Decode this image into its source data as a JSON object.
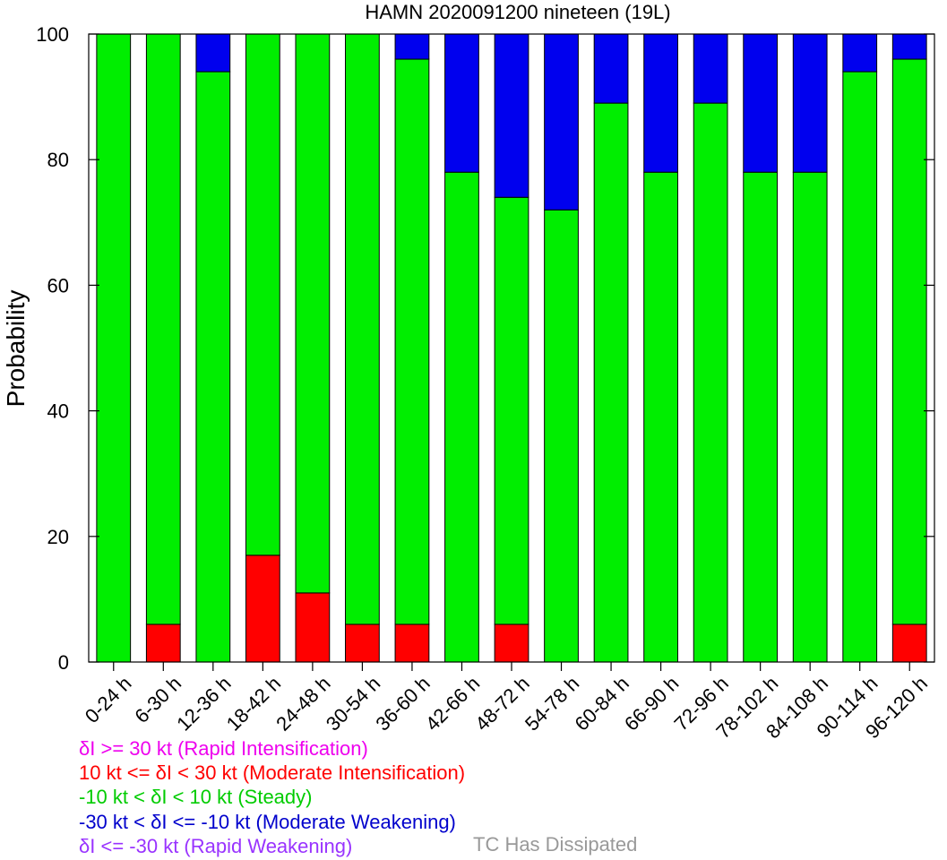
{
  "chart_data": {
    "type": "bar",
    "stacked": true,
    "title": "HAMN 2020091200 nineteen (19L)",
    "xlabel": "",
    "ylabel": "Probability",
    "ylim": [
      0,
      100
    ],
    "yticks": [
      "0",
      "20",
      "40",
      "60",
      "80",
      "100"
    ],
    "grid": false,
    "categories": [
      "0-24 h",
      "6-30 h",
      "12-36 h",
      "18-42 h",
      "24-48 h",
      "30-54 h",
      "36-60 h",
      "42-66 h",
      "48-72 h",
      "54-78 h",
      "60-84 h",
      "66-90 h",
      "72-96 h",
      "78-102 h",
      "84-108 h",
      "90-114 h",
      "96-120 h"
    ],
    "series": [
      {
        "name": "10 kt <= δI < 30 kt (Moderate Intensification)",
        "color": "#ff0000",
        "values": [
          0,
          6,
          0,
          17,
          11,
          6,
          6,
          0,
          6,
          0,
          0,
          0,
          0,
          0,
          0,
          0,
          6
        ]
      },
      {
        "name": "-10 kt < δI < 10 kt (Steady)",
        "color": "#00ee00",
        "values": [
          100,
          94,
          94,
          83,
          89,
          94,
          90,
          78,
          68,
          72,
          89,
          78,
          89,
          78,
          78,
          94,
          90
        ]
      },
      {
        "name": "-30 kt < δI <= -10 kt (Moderate Weakening)",
        "color": "#0000ee",
        "values": [
          0,
          0,
          6,
          0,
          0,
          0,
          4,
          22,
          26,
          28,
          11,
          22,
          11,
          22,
          22,
          6,
          4
        ]
      }
    ],
    "legend": {
      "placement": "bottom-left",
      "entries": [
        {
          "text": "δI >= 30 kt (Rapid Intensification)",
          "color": "#ee00ee"
        },
        {
          "text": "10 kt <= δI < 30 kt (Moderate Intensification)",
          "color": "#ff0000"
        },
        {
          "text": "-10 kt < δI < 10 kt (Steady)",
          "color": "#00cc00"
        },
        {
          "text": "-30 kt < δI <= -10 kt (Moderate Weakening)",
          "color": "#0000cc"
        },
        {
          "text": "δI <= -30 kt (Rapid Weakening)",
          "color": "#9933ff"
        }
      ],
      "dissipated": {
        "text": "TC Has Dissipated",
        "color": "#999999"
      }
    }
  }
}
